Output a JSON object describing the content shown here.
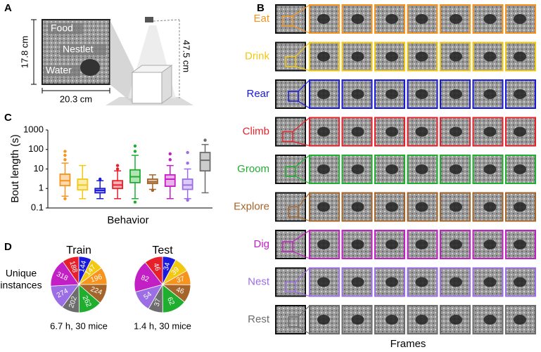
{
  "panel_labels": [
    "A",
    "B",
    "C",
    "D"
  ],
  "cage": {
    "labels": [
      "Food",
      "Nestlet",
      "Water"
    ],
    "height": "17.8 cm",
    "width": "20.3 cm",
    "camera_distance": "47.5 cm"
  },
  "behaviors": {
    "xlabel": "Frames",
    "rows": [
      {
        "label": "Eat",
        "color": "#f7941d"
      },
      {
        "label": "Drink",
        "color": "#f2c811"
      },
      {
        "label": "Rear",
        "color": "#1a1adb"
      },
      {
        "label": "Climb",
        "color": "#e8202a"
      },
      {
        "label": "Groom",
        "color": "#1fae2e"
      },
      {
        "label": "Explore",
        "color": "#a5652a"
      },
      {
        "label": "Dig",
        "color": "#c21fc4"
      },
      {
        "label": "Nest",
        "color": "#9b6ee6"
      },
      {
        "label": "Rest",
        "color": "#6d6d6d"
      }
    ]
  },
  "pie_side_label": [
    "Unique",
    "instances"
  ],
  "chart_data": [
    {
      "type": "box",
      "ylabel": "Bout length (s)",
      "xlabel": "Behavior",
      "log_scale": true,
      "ylim": [
        0.1,
        1000
      ],
      "yticks": [
        1000,
        100,
        10,
        1,
        0.1
      ],
      "boxes": [
        {
          "color": "#f7941d",
          "whislo": 0.4,
          "q1": 1.4,
          "med": 2.5,
          "q3": 5.4,
          "whishi": 20,
          "fliers": [
            0.3,
            30,
            50,
            80
          ]
        },
        {
          "color": "#f2c811",
          "whislo": 0.3,
          "q1": 0.85,
          "med": 1.5,
          "q3": 3,
          "whishi": 15,
          "fliers": []
        },
        {
          "color": "#1a1adb",
          "whislo": 0.3,
          "q1": 0.6,
          "med": 0.8,
          "q3": 1,
          "whishi": 2.5,
          "fliers": [
            3
          ]
        },
        {
          "color": "#e8202a",
          "whislo": 0.3,
          "q1": 1,
          "med": 1.5,
          "q3": 2.5,
          "whishi": 8,
          "fliers": [
            10,
            15
          ]
        },
        {
          "color": "#1fae2e",
          "whislo": 0.3,
          "q1": 2,
          "med": 4,
          "q3": 9,
          "whishi": 50,
          "fliers": [
            0.2,
            80,
            150
          ]
        },
        {
          "color": "#a5652a",
          "whislo": 0.9,
          "q1": 1.8,
          "med": 2.2,
          "q3": 3,
          "whishi": 5,
          "fliers": [
            0.8
          ]
        },
        {
          "color": "#c21fc4",
          "whislo": 0.3,
          "q1": 1.3,
          "med": 3,
          "q3": 5,
          "whishi": 15,
          "fliers": [
            30,
            60
          ]
        },
        {
          "color": "#9b6ee6",
          "whislo": 0.3,
          "q1": 0.9,
          "med": 1.5,
          "q3": 3,
          "whishi": 10,
          "fliers": [
            0.25,
            20,
            70
          ]
        },
        {
          "color": "#6d6d6d",
          "whislo": 0.6,
          "q1": 8,
          "med": 28,
          "q3": 70,
          "whishi": 180,
          "fliers": [
            300
          ]
        }
      ]
    },
    {
      "type": "pie",
      "title": "Train",
      "caption": "6.7 h, 30 mice",
      "colors": [
        "#1a1adb",
        "#f2c811",
        "#f7941d",
        "#a5652a",
        "#1fae2e",
        "#6d6d6d",
        "#9b6ee6",
        "#c21fc4",
        "#e8202a"
      ],
      "values": [
        144,
        147,
        196,
        224,
        262,
        202,
        274,
        318,
        188
      ]
    },
    {
      "type": "pie",
      "title": "Test",
      "caption": "1.4 h, 30 mice",
      "colors": [
        "#1a1adb",
        "#f2c811",
        "#f7941d",
        "#a5652a",
        "#1fae2e",
        "#6d6d6d",
        "#9b6ee6",
        "#c21fc4",
        "#e8202a"
      ],
      "values": [
        34,
        39,
        37,
        46,
        62,
        37,
        54,
        82,
        46
      ]
    }
  ]
}
